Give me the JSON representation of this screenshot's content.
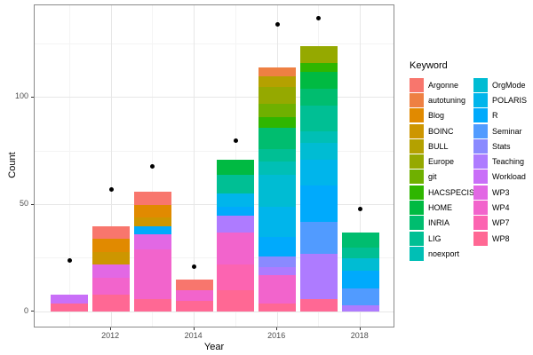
{
  "axis": {
    "x_label": "Year",
    "y_label": "Count",
    "x_ticks": [
      2012,
      2014,
      2016,
      2018
    ],
    "x_minor": [
      2011,
      2013,
      2015,
      2017
    ],
    "y_ticks": [
      0,
      50,
      100
    ],
    "y_minor": [
      25,
      75,
      125
    ]
  },
  "legend": {
    "title": "Keyword",
    "keywords": [
      {
        "label": "Argonne",
        "color": "#F8766D"
      },
      {
        "label": "autotuning",
        "color": "#EE8043"
      },
      {
        "label": "Blog",
        "color": "#E18A00"
      },
      {
        "label": "BOINC",
        "color": "#CD9600"
      },
      {
        "label": "BULL",
        "color": "#B4A100"
      },
      {
        "label": "Europe",
        "color": "#95A900"
      },
      {
        "label": "git",
        "color": "#6FB000"
      },
      {
        "label": "HACSPECIS",
        "color": "#2FB600"
      },
      {
        "label": "HOME",
        "color": "#00BA42"
      },
      {
        "label": "INRIA",
        "color": "#00BD6F"
      },
      {
        "label": "LIG",
        "color": "#00BF94"
      },
      {
        "label": "noexport",
        "color": "#00BFB5"
      },
      {
        "label": "OrgMode",
        "color": "#00BCD3"
      },
      {
        "label": "POLARIS",
        "color": "#00B5EB"
      },
      {
        "label": "R",
        "color": "#00AAFC"
      },
      {
        "label": "Seminar",
        "color": "#519BFF"
      },
      {
        "label": "Stats",
        "color": "#8A8AFF"
      },
      {
        "label": "Teaching",
        "color": "#AE7BFF"
      },
      {
        "label": "Workload",
        "color": "#C96FF8"
      },
      {
        "label": "WP3",
        "color": "#E268E4"
      },
      {
        "label": "WP4",
        "color": "#F264CC"
      },
      {
        "label": "WP7",
        "color": "#FC64B1"
      },
      {
        "label": "WP8",
        "color": "#FF6894"
      }
    ]
  },
  "chart_data": {
    "type": "bar",
    "stacked": true,
    "stack_order_top_to_bottom": "alphabetical",
    "xlabel": "Year",
    "ylabel": "Count",
    "xlim": [
      2010.2,
      2018.85
    ],
    "ylim": [
      -7,
      143
    ],
    "grid": true,
    "legend_position": "right",
    "x": [
      2011,
      2012,
      2013,
      2014,
      2015,
      2016,
      2017,
      2018
    ],
    "bars": [
      {
        "year": 2011,
        "total": 8,
        "segments": {
          "Workload": 4,
          "WP8": 4
        }
      },
      {
        "year": 2012,
        "total": 40,
        "segments": {
          "Argonne": 6,
          "Blog": 6,
          "BOINC": 6,
          "WP3": 6,
          "WP4": 8,
          "WP8": 8
        }
      },
      {
        "year": 2013,
        "total": 56,
        "segments": {
          "Argonne": 6,
          "Blog": 6,
          "BOINC": 4,
          "R": 4,
          "WP3": 7,
          "WP4": 23,
          "WP8": 6
        }
      },
      {
        "year": 2014,
        "total": 15,
        "segments": {
          "Argonne": 5,
          "WP4": 5,
          "WP8": 5
        }
      },
      {
        "year": 2015,
        "total": 71,
        "segments": {
          "HOME": 7,
          "LIG": 9,
          "POLARIS": 6,
          "R": 4,
          "Teaching": 8,
          "WP4": 15,
          "WP7": 12,
          "WP8": 10
        }
      },
      {
        "year": 2016,
        "total": 114,
        "segments": {
          "autotuning": 4,
          "BULL": 5,
          "Europe": 8,
          "git": 6,
          "HACSPECIS": 5,
          "INRIA": 10,
          "LIG": 6,
          "noexport": 6,
          "OrgMode": 15,
          "POLARIS": 14,
          "R": 9,
          "Stats": 5,
          "Teaching": 4,
          "WP4": 13,
          "WP8": 4
        }
      },
      {
        "year": 2017,
        "total": 124,
        "segments": {
          "Europe": 8,
          "HACSPECIS": 4,
          "HOME": 8,
          "INRIA": 8,
          "LIG": 12,
          "noexport": 5,
          "OrgMode": 8,
          "POLARIS": 12,
          "R": 17,
          "Seminar": 15,
          "Teaching": 21,
          "WP8": 6
        }
      },
      {
        "year": 2018,
        "total": 37,
        "segments": {
          "INRIA": 7,
          "LIG": 5,
          "OrgMode": 6,
          "R": 8,
          "Seminar": 8,
          "Teaching": 3
        }
      }
    ],
    "points": [
      {
        "year": 2011,
        "value": 24
      },
      {
        "year": 2012,
        "value": 57
      },
      {
        "year": 2013,
        "value": 68
      },
      {
        "year": 2014,
        "value": 21
      },
      {
        "year": 2015,
        "value": 80
      },
      {
        "year": 2016,
        "value": 134
      },
      {
        "year": 2017,
        "value": 137
      },
      {
        "year": 2018,
        "value": 48
      }
    ]
  }
}
